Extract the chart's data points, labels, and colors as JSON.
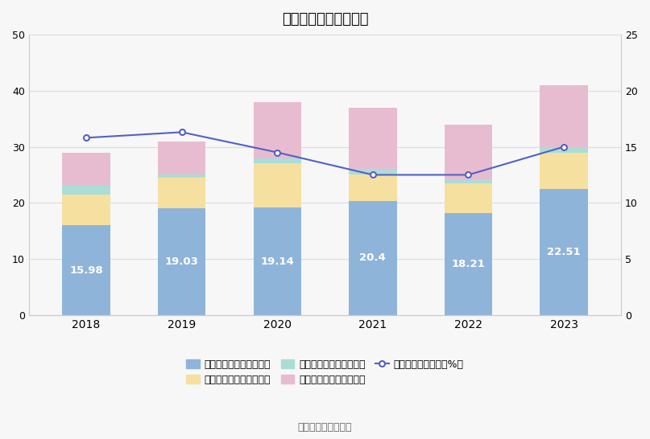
{
  "title": "历年期间费用变化情况",
  "years": [
    2018,
    2019,
    2020,
    2021,
    2022,
    2023
  ],
  "sales_expense": [
    15.98,
    19.03,
    19.14,
    20.4,
    18.21,
    22.51
  ],
  "mgmt_expense": [
    5.52,
    5.47,
    7.86,
    4.6,
    5.29,
    6.49
  ],
  "finance_expense": [
    1.5,
    0.5,
    1.0,
    1.0,
    0.5,
    1.0
  ],
  "rd_expense": [
    6.0,
    6.0,
    10.0,
    11.0,
    10.0,
    11.0
  ],
  "period_expense_rate": [
    15.8,
    16.3,
    14.5,
    12.5,
    12.5,
    15.0
  ],
  "bar_colors": [
    "#8fb4d9",
    "#f5e0a0",
    "#aaddd8",
    "#e8bcd0"
  ],
  "line_color": "#5460c8",
  "left_ylim": [
    0,
    50
  ],
  "right_ylim": [
    0,
    25
  ],
  "left_yticks": [
    0,
    10,
    20,
    30,
    40,
    50
  ],
  "right_yticks": [
    0,
    5,
    10,
    15,
    20,
    25
  ],
  "legend_labels": [
    "左轴：销售费用（亿元）",
    "左轴：管理费用（亿元）",
    "左轴：财务费用（亿元）",
    "左轴：研发费用（亿元）",
    "右轴：期间费用率（%）"
  ],
  "source_text": "数据来源：恒生聚源",
  "background_color": "#f7f7f7",
  "grid_color": "#d5dcea",
  "bar_width": 0.5
}
